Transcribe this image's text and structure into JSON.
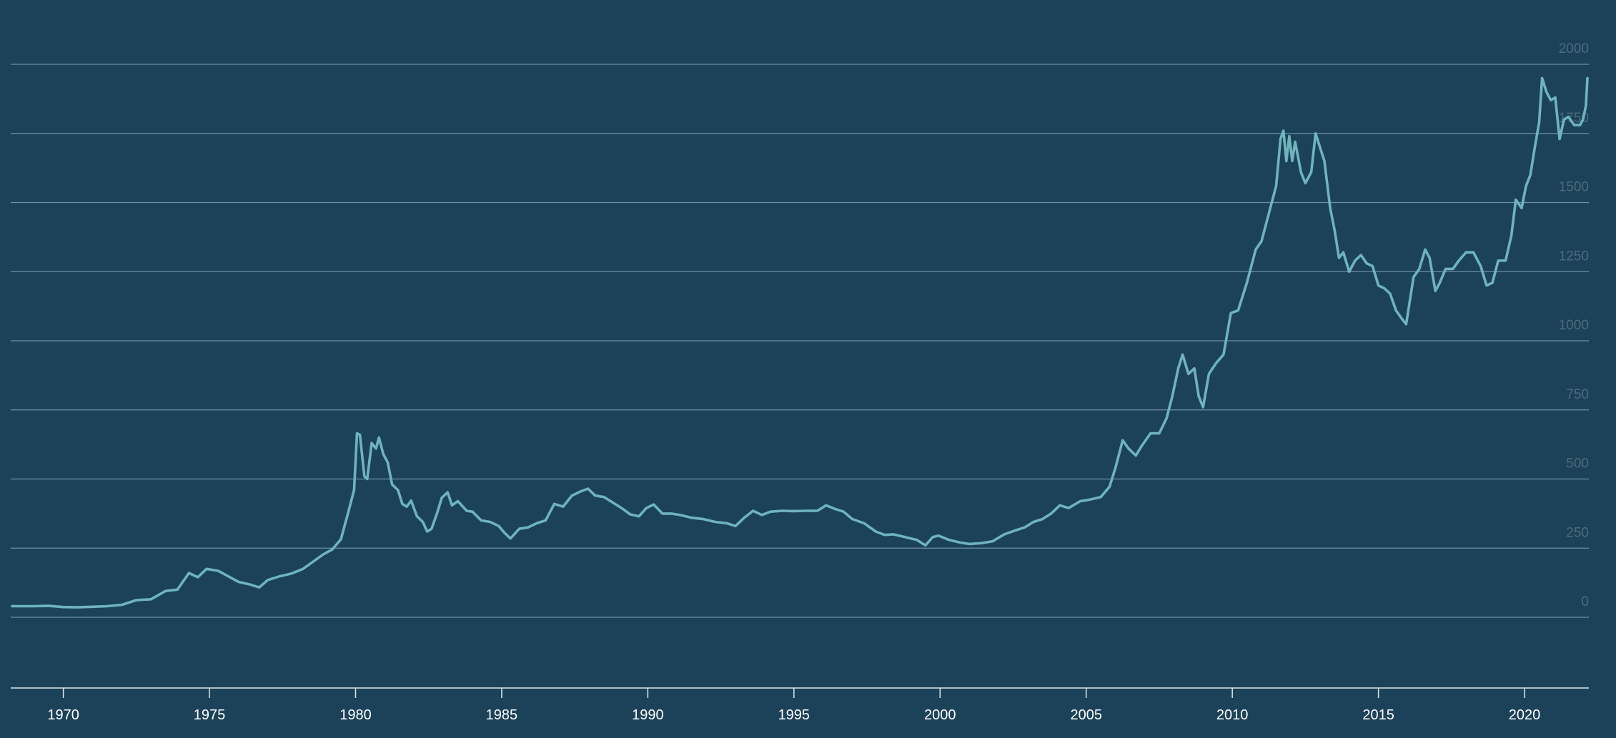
{
  "chart_data": {
    "type": "line",
    "title": "",
    "xlabel": "",
    "ylabel": "",
    "xlim": [
      1968.2,
      2022.2
    ],
    "ylim": [
      -250,
      2050
    ],
    "grid": true,
    "legend": "none",
    "y_ticks": [
      "2000",
      "1750",
      "1500",
      "1250",
      "1000",
      "750",
      "500",
      "250",
      "0"
    ],
    "x_ticks": [
      "1970",
      "1975",
      "1980",
      "1985",
      "1990",
      "1995",
      "2000",
      "2005",
      "2010",
      "2015",
      "2020"
    ],
    "series": [
      {
        "color": "#6fb3bd",
        "points": [
          [
            1968.25,
            40
          ],
          [
            1969.0,
            40
          ],
          [
            1969.5,
            41
          ],
          [
            1970.0,
            37
          ],
          [
            1970.5,
            36
          ],
          [
            1971.0,
            38
          ],
          [
            1971.5,
            40
          ],
          [
            1972.0,
            45
          ],
          [
            1972.5,
            62
          ],
          [
            1973.0,
            65
          ],
          [
            1973.5,
            95
          ],
          [
            1973.9,
            100
          ],
          [
            1974.3,
            160
          ],
          [
            1974.6,
            145
          ],
          [
            1974.9,
            175
          ],
          [
            1975.3,
            168
          ],
          [
            1975.7,
            145
          ],
          [
            1976.0,
            128
          ],
          [
            1976.4,
            118
          ],
          [
            1976.7,
            108
          ],
          [
            1977.0,
            135
          ],
          [
            1977.4,
            148
          ],
          [
            1977.8,
            158
          ],
          [
            1978.2,
            175
          ],
          [
            1978.6,
            205
          ],
          [
            1978.9,
            228
          ],
          [
            1979.2,
            245
          ],
          [
            1979.5,
            282
          ],
          [
            1979.75,
            380
          ],
          [
            1979.95,
            460
          ],
          [
            1980.05,
            665
          ],
          [
            1980.15,
            660
          ],
          [
            1980.3,
            510
          ],
          [
            1980.4,
            500
          ],
          [
            1980.55,
            630
          ],
          [
            1980.7,
            610
          ],
          [
            1980.8,
            650
          ],
          [
            1980.95,
            590
          ],
          [
            1981.1,
            560
          ],
          [
            1981.25,
            480
          ],
          [
            1981.45,
            460
          ],
          [
            1981.6,
            410
          ],
          [
            1981.75,
            400
          ],
          [
            1981.9,
            422
          ],
          [
            1982.1,
            365
          ],
          [
            1982.3,
            345
          ],
          [
            1982.45,
            310
          ],
          [
            1982.6,
            320
          ],
          [
            1982.8,
            380
          ],
          [
            1982.95,
            432
          ],
          [
            1983.15,
            452
          ],
          [
            1983.3,
            405
          ],
          [
            1983.5,
            420
          ],
          [
            1983.8,
            385
          ],
          [
            1984.0,
            382
          ],
          [
            1984.3,
            350
          ],
          [
            1984.6,
            345
          ],
          [
            1984.9,
            330
          ],
          [
            1985.1,
            305
          ],
          [
            1985.3,
            285
          ],
          [
            1985.6,
            320
          ],
          [
            1985.9,
            325
          ],
          [
            1986.2,
            340
          ],
          [
            1986.5,
            350
          ],
          [
            1986.8,
            410
          ],
          [
            1987.1,
            400
          ],
          [
            1987.4,
            440
          ],
          [
            1987.7,
            455
          ],
          [
            1987.95,
            465
          ],
          [
            1988.2,
            440
          ],
          [
            1988.5,
            435
          ],
          [
            1988.8,
            415
          ],
          [
            1989.1,
            395
          ],
          [
            1989.4,
            372
          ],
          [
            1989.7,
            365
          ],
          [
            1989.95,
            395
          ],
          [
            1990.2,
            408
          ],
          [
            1990.5,
            375
          ],
          [
            1990.8,
            375
          ],
          [
            1991.1,
            370
          ],
          [
            1991.5,
            360
          ],
          [
            1991.9,
            355
          ],
          [
            1992.3,
            345
          ],
          [
            1992.7,
            340
          ],
          [
            1993.0,
            330
          ],
          [
            1993.3,
            360
          ],
          [
            1993.6,
            385
          ],
          [
            1993.9,
            370
          ],
          [
            1994.2,
            382
          ],
          [
            1994.6,
            385
          ],
          [
            1995.0,
            384
          ],
          [
            1995.4,
            385
          ],
          [
            1995.8,
            385
          ],
          [
            1996.1,
            405
          ],
          [
            1996.4,
            392
          ],
          [
            1996.7,
            382
          ],
          [
            1997.0,
            355
          ],
          [
            1997.4,
            340
          ],
          [
            1997.8,
            310
          ],
          [
            1998.1,
            298
          ],
          [
            1998.4,
            300
          ],
          [
            1998.8,
            290
          ],
          [
            1999.2,
            280
          ],
          [
            1999.5,
            260
          ],
          [
            1999.75,
            290
          ],
          [
            1999.95,
            295
          ],
          [
            2000.3,
            280
          ],
          [
            2000.7,
            270
          ],
          [
            2001.0,
            265
          ],
          [
            2001.4,
            268
          ],
          [
            2001.8,
            275
          ],
          [
            2002.2,
            300
          ],
          [
            2002.6,
            315
          ],
          [
            2002.9,
            325
          ],
          [
            2003.2,
            345
          ],
          [
            2003.5,
            355
          ],
          [
            2003.8,
            375
          ],
          [
            2004.1,
            405
          ],
          [
            2004.4,
            395
          ],
          [
            2004.8,
            420
          ],
          [
            2005.1,
            425
          ],
          [
            2005.5,
            435
          ],
          [
            2005.8,
            472
          ],
          [
            2006.0,
            540
          ],
          [
            2006.25,
            640
          ],
          [
            2006.45,
            610
          ],
          [
            2006.7,
            585
          ],
          [
            2006.9,
            620
          ],
          [
            2007.2,
            665
          ],
          [
            2007.5,
            665
          ],
          [
            2007.75,
            720
          ],
          [
            2007.95,
            800
          ],
          [
            2008.15,
            900
          ],
          [
            2008.3,
            950
          ],
          [
            2008.5,
            880
          ],
          [
            2008.7,
            900
          ],
          [
            2008.85,
            800
          ],
          [
            2009.0,
            760
          ],
          [
            2009.2,
            880
          ],
          [
            2009.45,
            920
          ],
          [
            2009.7,
            950
          ],
          [
            2009.95,
            1100
          ],
          [
            2010.2,
            1110
          ],
          [
            2010.5,
            1210
          ],
          [
            2010.8,
            1330
          ],
          [
            2011.0,
            1360
          ],
          [
            2011.3,
            1480
          ],
          [
            2011.5,
            1560
          ],
          [
            2011.65,
            1730
          ],
          [
            2011.75,
            1760
          ],
          [
            2011.85,
            1650
          ],
          [
            2011.95,
            1740
          ],
          [
            2012.05,
            1650
          ],
          [
            2012.15,
            1720
          ],
          [
            2012.35,
            1610
          ],
          [
            2012.5,
            1570
          ],
          [
            2012.7,
            1610
          ],
          [
            2012.85,
            1750
          ],
          [
            2013.0,
            1700
          ],
          [
            2013.15,
            1650
          ],
          [
            2013.35,
            1480
          ],
          [
            2013.5,
            1400
          ],
          [
            2013.65,
            1300
          ],
          [
            2013.8,
            1320
          ],
          [
            2014.0,
            1250
          ],
          [
            2014.2,
            1290
          ],
          [
            2014.4,
            1310
          ],
          [
            2014.6,
            1280
          ],
          [
            2014.8,
            1270
          ],
          [
            2015.0,
            1200
          ],
          [
            2015.2,
            1190
          ],
          [
            2015.4,
            1170
          ],
          [
            2015.6,
            1110
          ],
          [
            2015.8,
            1080
          ],
          [
            2015.95,
            1060
          ],
          [
            2016.2,
            1230
          ],
          [
            2016.4,
            1260
          ],
          [
            2016.6,
            1330
          ],
          [
            2016.75,
            1300
          ],
          [
            2016.95,
            1180
          ],
          [
            2017.1,
            1210
          ],
          [
            2017.3,
            1260
          ],
          [
            2017.55,
            1260
          ],
          [
            2017.75,
            1290
          ],
          [
            2018.0,
            1320
          ],
          [
            2018.25,
            1320
          ],
          [
            2018.5,
            1270
          ],
          [
            2018.7,
            1200
          ],
          [
            2018.9,
            1210
          ],
          [
            2019.1,
            1290
          ],
          [
            2019.35,
            1290
          ],
          [
            2019.55,
            1380
          ],
          [
            2019.7,
            1510
          ],
          [
            2019.9,
            1480
          ],
          [
            2020.05,
            1560
          ],
          [
            2020.2,
            1600
          ],
          [
            2020.35,
            1700
          ],
          [
            2020.5,
            1790
          ],
          [
            2020.6,
            1950
          ],
          [
            2020.75,
            1900
          ],
          [
            2020.9,
            1870
          ],
          [
            2021.05,
            1880
          ],
          [
            2021.2,
            1730
          ],
          [
            2021.35,
            1800
          ],
          [
            2021.5,
            1810
          ],
          [
            2021.7,
            1780
          ],
          [
            2021.9,
            1780
          ],
          [
            2022.0,
            1800
          ],
          [
            2022.1,
            1850
          ],
          [
            2022.15,
            1950
          ]
        ]
      }
    ]
  }
}
